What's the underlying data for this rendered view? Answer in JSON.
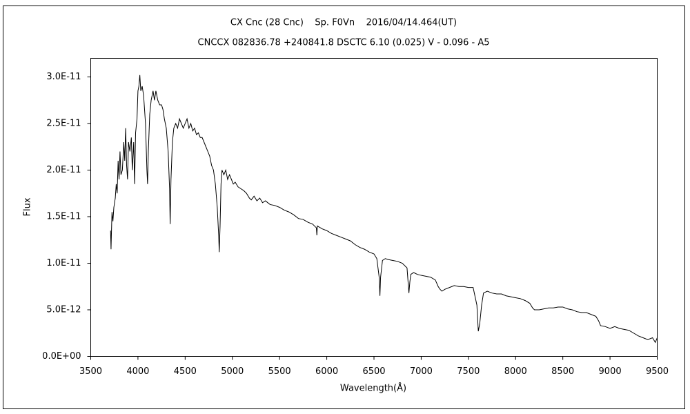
{
  "chart_data": {
    "type": "line",
    "title": "CX Cnc (28 Cnc)    Sp. F0Vn    2016/04/14.464(UT)",
    "subtitle": "CNCCX 082836.78 +240841.8 DSCTC 6.10 (0.025) V - 0.096 - A5",
    "x_label": "Wavelength(Å)",
    "y_label": "Flux",
    "color": "#000000",
    "grid": false,
    "xlim": [
      3500,
      9500
    ],
    "xticks": [
      3500,
      4000,
      4500,
      5000,
      5500,
      6000,
      6500,
      7000,
      7500,
      8000,
      8500,
      9000,
      9500
    ],
    "ylim": [
      0,
      3.2e-11
    ],
    "yticks": [
      {
        "value": 0,
        "label": "0.0E+00"
      },
      {
        "value": 5e-12,
        "label": "5.0E-12"
      },
      {
        "value": 1e-11,
        "label": "1.0E-11"
      },
      {
        "value": 1.5e-11,
        "label": "1.5E-11"
      },
      {
        "value": 2e-11,
        "label": "2.0E-11"
      },
      {
        "value": 2.5e-11,
        "label": "2.5E-11"
      },
      {
        "value": 3e-11,
        "label": "3.0E-11"
      }
    ],
    "x": [
      3710,
      3715,
      3725,
      3735,
      3745,
      3760,
      3770,
      3780,
      3790,
      3800,
      3810,
      3820,
      3835,
      3850,
      3860,
      3870,
      3880,
      3890,
      3900,
      3915,
      3930,
      3940,
      3955,
      3965,
      3975,
      3990,
      4000,
      4010,
      4020,
      4030,
      4045,
      4060,
      4080,
      4095,
      4102,
      4110,
      4125,
      4140,
      4160,
      4175,
      4190,
      4210,
      4230,
      4250,
      4265,
      4280,
      4300,
      4320,
      4335,
      4341,
      4350,
      4365,
      4380,
      4400,
      4420,
      4440,
      4460,
      4480,
      4500,
      4520,
      4540,
      4560,
      4580,
      4600,
      4620,
      4640,
      4660,
      4680,
      4700,
      4720,
      4740,
      4760,
      4780,
      4800,
      4820,
      4840,
      4855,
      4861,
      4870,
      4880,
      4890,
      4910,
      4930,
      4950,
      4970,
      4990,
      5010,
      5030,
      5060,
      5090,
      5120,
      5150,
      5180,
      5200,
      5230,
      5260,
      5290,
      5320,
      5350,
      5400,
      5450,
      5500,
      5550,
      5600,
      5650,
      5700,
      5750,
      5800,
      5850,
      5890,
      5895,
      5900,
      5950,
      6000,
      6050,
      6100,
      6150,
      6200,
      6250,
      6300,
      6350,
      6400,
      6450,
      6500,
      6530,
      6555,
      6563,
      6570,
      6590,
      6620,
      6650,
      6700,
      6750,
      6800,
      6850,
      6870,
      6880,
      6890,
      6920,
      6960,
      7000,
      7050,
      7100,
      7150,
      7180,
      7200,
      7220,
      7250,
      7300,
      7350,
      7400,
      7450,
      7500,
      7550,
      7590,
      7605,
      7620,
      7640,
      7660,
      7700,
      7750,
      7800,
      7850,
      7900,
      7950,
      8000,
      8050,
      8100,
      8150,
      8180,
      8200,
      8250,
      8300,
      8350,
      8400,
      8450,
      8500,
      8550,
      8600,
      8650,
      8700,
      8750,
      8800,
      8850,
      8880,
      8900,
      8950,
      9000,
      9050,
      9100,
      9150,
      9200,
      9250,
      9300,
      9350,
      9400,
      9450,
      9480,
      9500
    ],
    "values": [
      1.35e-11,
      1.15e-11,
      1.55e-11,
      1.45e-11,
      1.6e-11,
      1.7e-11,
      1.85e-11,
      1.75e-11,
      2.1e-11,
      1.9e-11,
      2.2e-11,
      1.95e-11,
      2e-11,
      2.3e-11,
      2.1e-11,
      2.45e-11,
      2.05e-11,
      1.9e-11,
      2.3e-11,
      2.2e-11,
      2.35e-11,
      2e-11,
      2.3e-11,
      1.85e-11,
      2.4e-11,
      2.55e-11,
      2.85e-11,
      2.9e-11,
      3.02e-11,
      2.85e-11,
      2.9e-11,
      2.8e-11,
      2.5e-11,
      2e-11,
      1.85e-11,
      2.2e-11,
      2.6e-11,
      2.75e-11,
      2.85e-11,
      2.75e-11,
      2.85e-11,
      2.75e-11,
      2.7e-11,
      2.7e-11,
      2.65e-11,
      2.55e-11,
      2.45e-11,
      2.2e-11,
      1.8e-11,
      1.42e-11,
      1.9e-11,
      2.3e-11,
      2.45e-11,
      2.5e-11,
      2.45e-11,
      2.55e-11,
      2.5e-11,
      2.45e-11,
      2.5e-11,
      2.55e-11,
      2.45e-11,
      2.5e-11,
      2.42e-11,
      2.45e-11,
      2.38e-11,
      2.4e-11,
      2.35e-11,
      2.35e-11,
      2.3e-11,
      2.25e-11,
      2.2e-11,
      2.15e-11,
      2.05e-11,
      2e-11,
      1.85e-11,
      1.6e-11,
      1.3e-11,
      1.12e-11,
      1.4e-11,
      1.85e-11,
      2e-11,
      1.95e-11,
      2e-11,
      1.9e-11,
      1.95e-11,
      1.9e-11,
      1.85e-11,
      1.87e-11,
      1.82e-11,
      1.8e-11,
      1.78e-11,
      1.75e-11,
      1.7e-11,
      1.68e-11,
      1.72e-11,
      1.67e-11,
      1.7e-11,
      1.65e-11,
      1.67e-11,
      1.63e-11,
      1.62e-11,
      1.6e-11,
      1.57e-11,
      1.55e-11,
      1.52e-11,
      1.48e-11,
      1.47e-11,
      1.44e-11,
      1.42e-11,
      1.38e-11,
      1.3e-11,
      1.4e-11,
      1.37e-11,
      1.35e-11,
      1.32e-11,
      1.3e-11,
      1.28e-11,
      1.26e-11,
      1.24e-11,
      1.2e-11,
      1.17e-11,
      1.15e-11,
      1.12e-11,
      1.1e-11,
      1.05e-11,
      8.5e-12,
      6.5e-12,
      8.5e-12,
      1.03e-11,
      1.05e-11,
      1.04e-11,
      1.03e-11,
      1.02e-11,
      1e-11,
      9.5e-12,
      6.8e-12,
      8e-12,
      8.8e-12,
      9e-12,
      8.8e-12,
      8.7e-12,
      8.6e-12,
      8.5e-12,
      8.2e-12,
      7.5e-12,
      7.2e-12,
      7e-12,
      7.2e-12,
      7.4e-12,
      7.6e-12,
      7.5e-12,
      7.5e-12,
      7.4e-12,
      7.4e-12,
      5.5e-12,
      2.7e-12,
      3.5e-12,
      5.5e-12,
      6.8e-12,
      7e-12,
      6.8e-12,
      6.7e-12,
      6.7e-12,
      6.5e-12,
      6.4e-12,
      6.3e-12,
      6.2e-12,
      6e-12,
      5.7e-12,
      5.2e-12,
      5e-12,
      5e-12,
      5.1e-12,
      5.2e-12,
      5.2e-12,
      5.3e-12,
      5.3e-12,
      5.1e-12,
      5e-12,
      4.8e-12,
      4.7e-12,
      4.7e-12,
      4.5e-12,
      4.3e-12,
      3.8e-12,
      3.3e-12,
      3.2e-12,
      3e-12,
      3.2e-12,
      3e-12,
      2.9e-12,
      2.8e-12,
      2.5e-12,
      2.2e-12,
      2e-12,
      1.8e-12,
      2e-12,
      1.5e-12,
      2e-12
    ]
  }
}
